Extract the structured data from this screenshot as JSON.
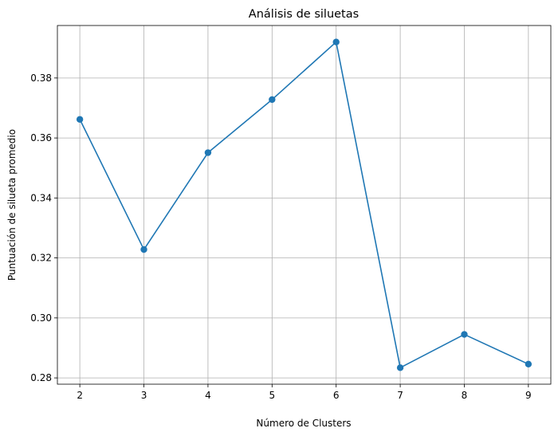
{
  "chart_data": {
    "type": "line",
    "title": "Análisis de siluetas",
    "xlabel": "Número de Clusters",
    "ylabel": "Puntuación de silueta promedio",
    "x": [
      2,
      3,
      4,
      5,
      6,
      7,
      8,
      9
    ],
    "series": [
      {
        "values": [
          0.3662,
          0.3228,
          0.3551,
          0.3728,
          0.392,
          0.2834,
          0.2945,
          0.2846
        ],
        "color": "#1f77b4",
        "marker": "circle"
      }
    ],
    "xlim": [
      1.65,
      9.35
    ],
    "ylim": [
      0.2779,
      0.3975
    ],
    "xticks": [
      "2",
      "3",
      "4",
      "5",
      "6",
      "7",
      "8",
      "9"
    ],
    "yticks": [
      "0.28",
      "0.30",
      "0.32",
      "0.34",
      "0.36",
      "0.38"
    ],
    "grid": true
  }
}
